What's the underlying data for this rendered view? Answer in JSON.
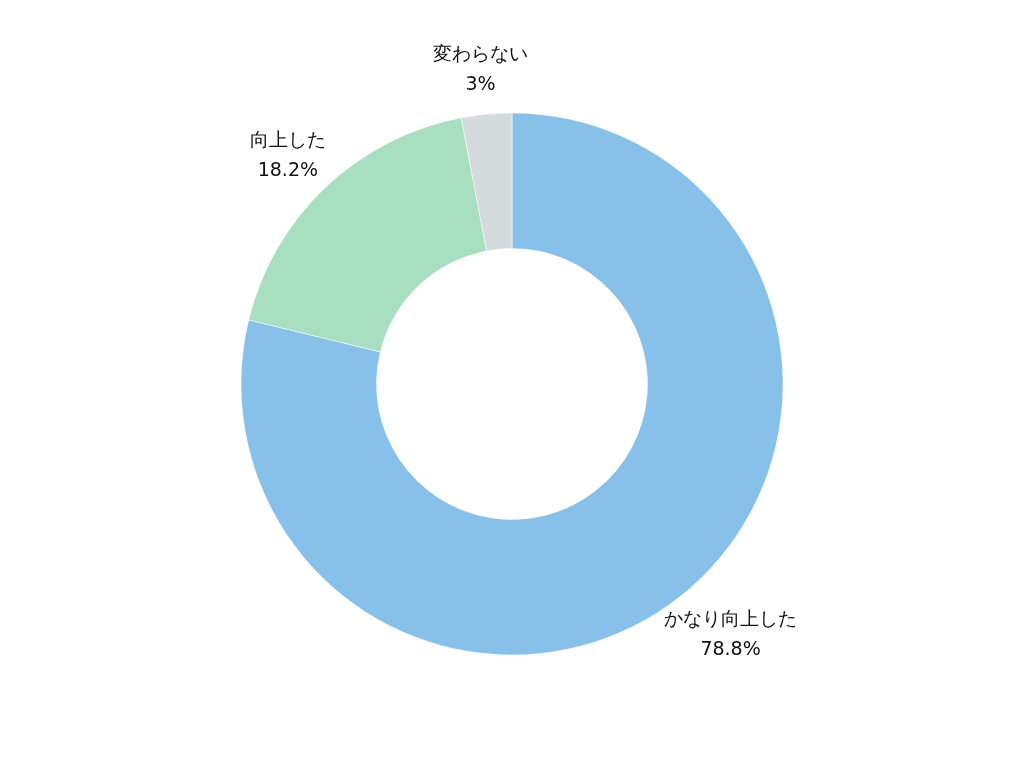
{
  "chart_data": {
    "type": "donut",
    "categories": [
      "かなり向上した",
      "向上した",
      "変わらない"
    ],
    "values": [
      78.8,
      18.2,
      3
    ],
    "value_labels": [
      "78.8%",
      "18.2%",
      "3%"
    ],
    "colors": [
      "#87c1e9",
      "#a8dfc0",
      "#d5dbdc"
    ]
  }
}
